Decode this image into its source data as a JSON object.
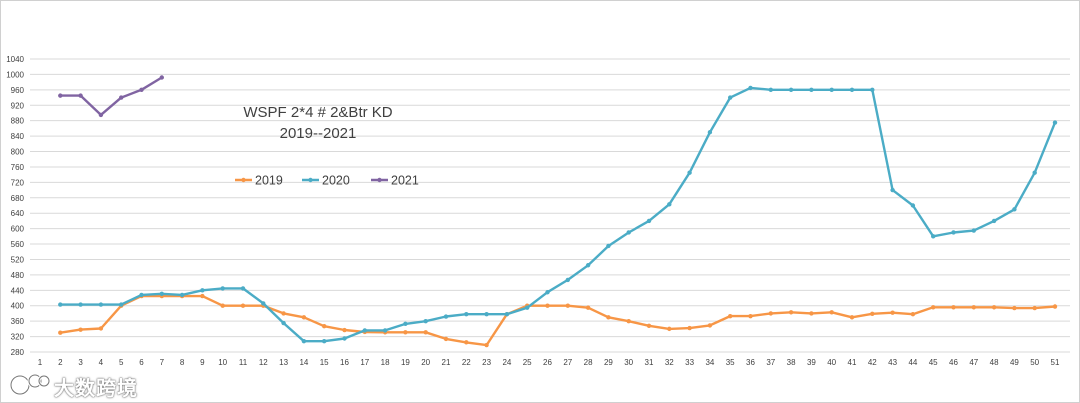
{
  "chart_data": {
    "type": "line",
    "title": [
      "WSPF 2*4 # 2&Btr KD",
      "2019--2021"
    ],
    "xlabel": "",
    "ylabel": "",
    "x": [
      1,
      2,
      3,
      4,
      5,
      6,
      7,
      8,
      9,
      10,
      11,
      12,
      13,
      14,
      15,
      16,
      17,
      18,
      19,
      20,
      21,
      22,
      23,
      24,
      25,
      26,
      27,
      28,
      29,
      30,
      31,
      32,
      33,
      34,
      35,
      36,
      37,
      38,
      39,
      40,
      41,
      42,
      43,
      44,
      45,
      46,
      47,
      48,
      49,
      50,
      51
    ],
    "ylim": [
      280,
      1040
    ],
    "yticks": [
      280,
      320,
      360,
      400,
      440,
      480,
      520,
      560,
      600,
      640,
      680,
      720,
      760,
      800,
      840,
      880,
      920,
      960,
      1000,
      1040
    ],
    "grid": true,
    "legend_position": "middle-left",
    "series": [
      {
        "name": "2019",
        "color": "#F79646",
        "x": [
          2,
          3,
          4,
          5,
          6,
          7,
          8,
          9,
          10,
          11,
          12,
          13,
          14,
          15,
          16,
          17,
          18,
          19,
          20,
          21,
          22,
          23,
          24,
          25,
          26,
          27,
          28,
          29,
          30,
          31,
          32,
          33,
          34,
          35,
          36,
          37,
          38,
          39,
          40,
          41,
          42,
          43,
          44,
          45,
          46,
          47,
          48,
          49,
          50,
          51
        ],
        "values": [
          330,
          338,
          341,
          400,
          425,
          425,
          425,
          425,
          400,
          400,
          400,
          380,
          370,
          347,
          337,
          332,
          331,
          331,
          331,
          314,
          305,
          298,
          378,
          400,
          400,
          400,
          395,
          370,
          360,
          348,
          340,
          342,
          349,
          373,
          373,
          380,
          383,
          380,
          383,
          370,
          379,
          382,
          378,
          396,
          396,
          396,
          396,
          394,
          394,
          398
        ]
      },
      {
        "name": "2020",
        "color": "#4BACC6",
        "x": [
          2,
          3,
          4,
          5,
          6,
          7,
          8,
          9,
          10,
          11,
          12,
          13,
          14,
          15,
          16,
          17,
          18,
          19,
          20,
          21,
          22,
          23,
          24,
          25,
          26,
          27,
          28,
          29,
          30,
          31,
          32,
          33,
          34,
          35,
          36,
          37,
          38,
          39,
          40,
          41,
          42,
          43,
          44,
          45,
          46,
          47,
          48,
          49,
          50,
          51
        ],
        "values": [
          403,
          403,
          403,
          403,
          428,
          431,
          428,
          440,
          445,
          445,
          406,
          355,
          308,
          308,
          315,
          336,
          336,
          353,
          360,
          372,
          378,
          378,
          378,
          395,
          435,
          467,
          505,
          555,
          590,
          620,
          663,
          745,
          850,
          940,
          965,
          960,
          960,
          960,
          960,
          960,
          960,
          700,
          660,
          580,
          590,
          595,
          620,
          650,
          745,
          875
        ]
      },
      {
        "name": "2021",
        "color": "#8064A2",
        "x": [
          2,
          3,
          4,
          5,
          6,
          7
        ],
        "values": [
          945,
          945,
          895,
          940,
          960,
          992
        ]
      }
    ]
  },
  "watermark": "大数跨境"
}
